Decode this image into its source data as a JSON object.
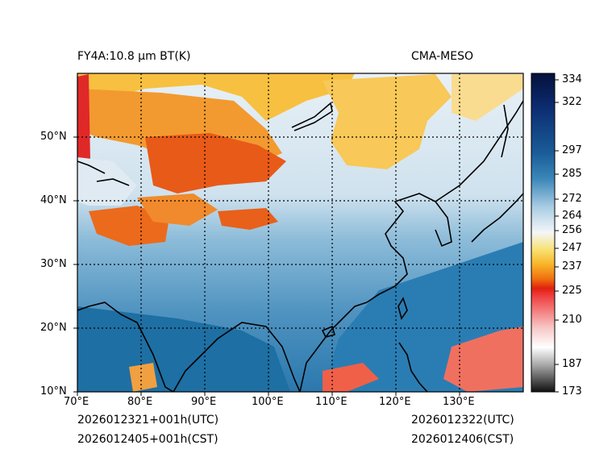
{
  "header": {
    "left_title": "FY4A:10.8 µm BT(K)",
    "right_title": "CMA-MESO"
  },
  "footer": {
    "init_utc": "2026012321+001h(UTC)",
    "init_cst": "2026012405+001h(CST)",
    "valid_utc": "2026012322(UTC)",
    "valid_cst": "2026012406(CST)"
  },
  "map": {
    "lon_ticks": [
      "70°E",
      "80°E",
      "90°E",
      "100°E",
      "110°E",
      "120°E",
      "130°E"
    ],
    "lat_ticks": [
      "10°N",
      "20°N",
      "30°N",
      "40°N",
      "50°N"
    ],
    "lon_range": [
      70,
      140
    ],
    "lat_range": [
      10,
      60
    ]
  },
  "colorbar": {
    "min": 173,
    "max": 336,
    "labels": [
      "334",
      "322",
      "297",
      "285",
      "272",
      "264",
      "256",
      "247",
      "237",
      "225",
      "210",
      "187",
      "173"
    ],
    "label_values": [
      334,
      322,
      297,
      285,
      272,
      264,
      256,
      247,
      237,
      225,
      210,
      187,
      173
    ]
  },
  "colors": {
    "cold_cloud_orange": "#f07818",
    "cirrus_yellow": "#f8c040",
    "ocean_blue": "#1e6fa3",
    "land_blue": "#5a9ec8",
    "snow_white": "#f0f4f8"
  }
}
